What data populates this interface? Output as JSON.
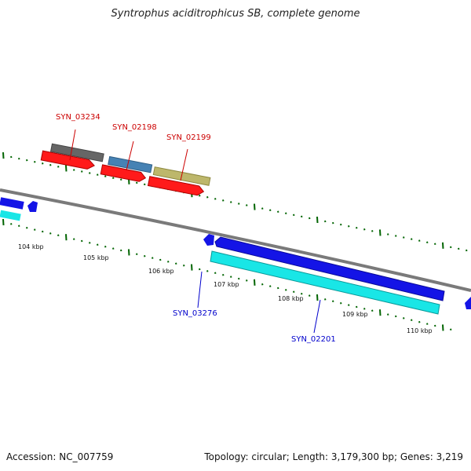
{
  "title": "Syntrophus aciditrophicus SB, complete genome",
  "footer": {
    "accession": "Accession: NC_007759",
    "topology": "Topology: circular; Length: 3,179,300 bp; Genes: 3,219"
  },
  "kbp_labels": [
    "104 kbp",
    "105 kbp",
    "106 kbp",
    "107 kbp",
    "108 kbp",
    "109 kbp",
    "110 kbp"
  ],
  "gene_labels": {
    "syn_03234": "SYN_03234",
    "syn_02198": "SYN_02198",
    "syn_02199": "SYN_02199",
    "syn_03276": "SYN_03276",
    "syn_02201": "SYN_02201"
  },
  "colors": {
    "backbone": "#808080",
    "forward_label": "#cc0000",
    "reverse_label": "#0000cc",
    "cds_forward": "#ff1a1a",
    "cds_reverse": "#1414e6",
    "gene_reverse": "#19e6e6",
    "gene_gray": "#666666",
    "gene_steel": "#4682b4",
    "gene_khaki": "#bdb76b",
    "ticks": "#006400"
  }
}
